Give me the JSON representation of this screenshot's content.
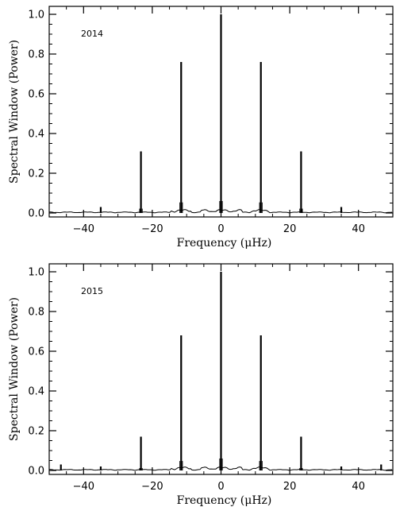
{
  "figure": {
    "panels": [
      "2014",
      "2015"
    ]
  },
  "chart_data": [
    {
      "type": "line",
      "annotation": "2014",
      "xlabel": "Frequency (μHz)",
      "ylabel": "Spectral Window (Power)",
      "xlim": [
        -50,
        50
      ],
      "ylim": [
        -0.02,
        1.04
      ],
      "xticks": [
        -40,
        -20,
        0,
        20,
        40
      ],
      "yticks": [
        0.0,
        0.2,
        0.4,
        0.6,
        0.8,
        1.0
      ],
      "xtick_labels": [
        "−40",
        "−20",
        "0",
        "20",
        "40"
      ],
      "ytick_labels": [
        "0.0",
        "0.2",
        "0.4",
        "0.6",
        "0.8",
        "1.0"
      ],
      "series": [
        {
          "peaks": [
            {
              "x": -35.0,
              "y": 0.03
            },
            {
              "x": -23.3,
              "y": 0.31
            },
            {
              "x": -11.6,
              "y": 0.76
            },
            {
              "x": 0.0,
              "y": 1.0
            },
            {
              "x": 11.6,
              "y": 0.76
            },
            {
              "x": 23.3,
              "y": 0.31
            },
            {
              "x": 35.0,
              "y": 0.03
            }
          ]
        }
      ]
    },
    {
      "type": "line",
      "annotation": "2015",
      "xlabel": "Frequency (μHz)",
      "ylabel": "Spectral Window (Power)",
      "xlim": [
        -50,
        50
      ],
      "ylim": [
        -0.02,
        1.04
      ],
      "xticks": [
        -40,
        -20,
        0,
        20,
        40
      ],
      "yticks": [
        0.0,
        0.2,
        0.4,
        0.6,
        0.8,
        1.0
      ],
      "xtick_labels": [
        "−40",
        "−20",
        "0",
        "20",
        "40"
      ],
      "ytick_labels": [
        "0.0",
        "0.2",
        "0.4",
        "0.6",
        "0.8",
        "1.0"
      ],
      "series": [
        {
          "peaks": [
            {
              "x": -46.6,
              "y": 0.03
            },
            {
              "x": -35.0,
              "y": 0.02
            },
            {
              "x": -23.3,
              "y": 0.17
            },
            {
              "x": -11.6,
              "y": 0.68
            },
            {
              "x": 0.0,
              "y": 1.0
            },
            {
              "x": 11.6,
              "y": 0.68
            },
            {
              "x": 23.3,
              "y": 0.17
            },
            {
              "x": 35.0,
              "y": 0.02
            },
            {
              "x": 46.6,
              "y": 0.03
            }
          ]
        }
      ]
    }
  ]
}
